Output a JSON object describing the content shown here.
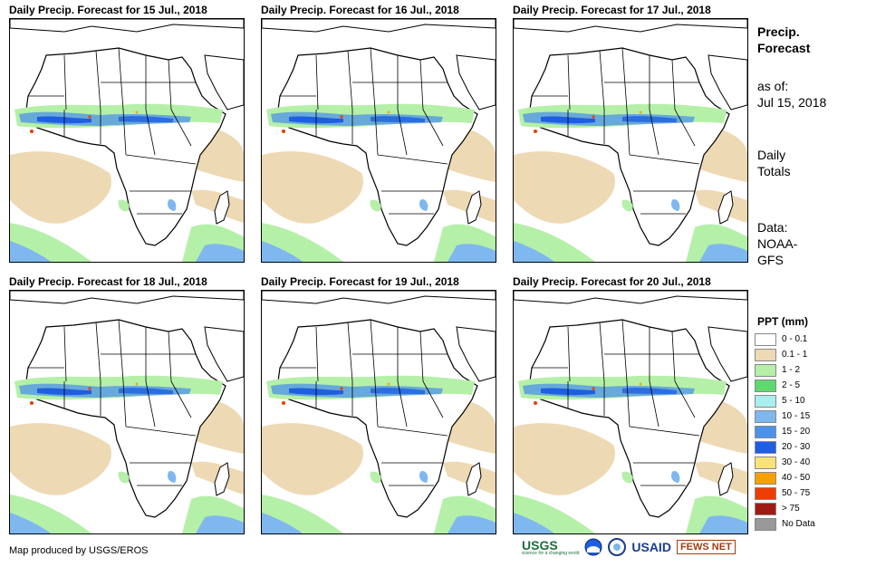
{
  "panels": [
    {
      "title": "Daily Precip. Forecast for 15 Jul., 2018"
    },
    {
      "title": "Daily Precip. Forecast for 16 Jul., 2018"
    },
    {
      "title": "Daily Precip. Forecast for 17 Jul., 2018"
    },
    {
      "title": "Daily Precip. Forecast for 18 Jul., 2018"
    },
    {
      "title": "Daily Precip. Forecast for 19 Jul., 2018"
    },
    {
      "title": "Daily Precip. Forecast for 20 Jul., 2018"
    }
  ],
  "side": {
    "heading_line1": "Precip.",
    "heading_line2": "Forecast",
    "asof_label": "as of:",
    "asof_date": "Jul 15, 2018",
    "totals_line1": "Daily",
    "totals_line2": "Totals",
    "data_line1": "Data:",
    "data_line2": "NOAA-",
    "data_line3": "GFS"
  },
  "legend": {
    "title": "PPT (mm)",
    "items": [
      {
        "label": "0 - 0.1",
        "color": "#ffffff"
      },
      {
        "label": "0.1 - 1",
        "color": "#eed9b5"
      },
      {
        "label": "1 - 2",
        "color": "#b5f0a8"
      },
      {
        "label": "2 - 5",
        "color": "#5fd870"
      },
      {
        "label": "5 - 10",
        "color": "#a9eff0"
      },
      {
        "label": "10 - 15",
        "color": "#7fb8ef"
      },
      {
        "label": "15 - 20",
        "color": "#4d92ea"
      },
      {
        "label": "20 - 30",
        "color": "#1e5ee0"
      },
      {
        "label": "30 - 40",
        "color": "#fae27a"
      },
      {
        "label": "40 - 50",
        "color": "#f5a200"
      },
      {
        "label": "50 - 75",
        "color": "#ee3c00"
      },
      {
        "label": "> 75",
        "color": "#a01a14"
      },
      {
        "label": "No Data",
        "color": "#999999"
      }
    ]
  },
  "credit": "Map produced by USGS/EROS",
  "logos": {
    "usgs": "USGS",
    "usgs_tagline": "science for a changing world",
    "usaid": "USAID",
    "fewsnet": "FEWS NET"
  }
}
